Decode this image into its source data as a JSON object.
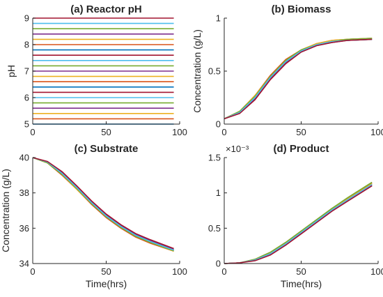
{
  "chart_data": [
    {
      "type": "line",
      "title": "(a)  Reactor pH",
      "xlabel": "",
      "ylabel": "pH",
      "xlim": [
        0,
        100
      ],
      "ylim": [
        5,
        9
      ],
      "xticks": [
        "0",
        "50",
        "100"
      ],
      "yticks": [
        "5",
        "6",
        "7",
        "8",
        "9"
      ],
      "x": [
        0,
        96
      ],
      "series": [
        {
          "color": "#0072BD",
          "values": [
            5.0,
            5.0
          ]
        },
        {
          "color": "#D95319",
          "values": [
            5.2,
            5.2
          ]
        },
        {
          "color": "#EDB120",
          "values": [
            5.4,
            5.4
          ]
        },
        {
          "color": "#7E2F8E",
          "values": [
            5.6,
            5.6
          ]
        },
        {
          "color": "#77AC30",
          "values": [
            5.8,
            5.8
          ]
        },
        {
          "color": "#4DBEEE",
          "values": [
            6.0,
            6.0
          ]
        },
        {
          "color": "#A2142F",
          "values": [
            6.2,
            6.2
          ]
        },
        {
          "color": "#0072BD",
          "values": [
            6.4,
            6.4
          ]
        },
        {
          "color": "#D95319",
          "values": [
            6.6,
            6.6
          ]
        },
        {
          "color": "#EDB120",
          "values": [
            6.8,
            6.8
          ]
        },
        {
          "color": "#7E2F8E",
          "values": [
            7.0,
            7.0
          ]
        },
        {
          "color": "#77AC30",
          "values": [
            7.2,
            7.2
          ]
        },
        {
          "color": "#4DBEEE",
          "values": [
            7.4,
            7.4
          ]
        },
        {
          "color": "#A2142F",
          "values": [
            7.6,
            7.6
          ]
        },
        {
          "color": "#0072BD",
          "values": [
            7.8,
            7.8
          ]
        },
        {
          "color": "#D95319",
          "values": [
            8.0,
            8.0
          ]
        },
        {
          "color": "#EDB120",
          "values": [
            8.2,
            8.2
          ]
        },
        {
          "color": "#7E2F8E",
          "values": [
            8.4,
            8.4
          ]
        },
        {
          "color": "#77AC30",
          "values": [
            8.6,
            8.6
          ]
        },
        {
          "color": "#4DBEEE",
          "values": [
            8.8,
            8.8
          ]
        },
        {
          "color": "#A2142F",
          "values": [
            9.0,
            9.0
          ]
        }
      ]
    },
    {
      "type": "line",
      "title": "(b)  Biomass",
      "xlabel": "",
      "ylabel": "Concentration (g/L)",
      "xlim": [
        0,
        100
      ],
      "ylim": [
        0,
        1
      ],
      "xticks": [
        "0",
        "50",
        "100"
      ],
      "yticks": [
        "0",
        "0.5",
        "1"
      ],
      "x": [
        0,
        10,
        20,
        30,
        40,
        50,
        60,
        70,
        80,
        96
      ],
      "series": [
        {
          "color": "#0072BD",
          "values": [
            0.05,
            0.11,
            0.25,
            0.44,
            0.59,
            0.69,
            0.75,
            0.78,
            0.79,
            0.8
          ]
        },
        {
          "color": "#D95319",
          "values": [
            0.05,
            0.12,
            0.27,
            0.46,
            0.61,
            0.7,
            0.76,
            0.79,
            0.8,
            0.81
          ]
        },
        {
          "color": "#EDB120",
          "values": [
            0.05,
            0.12,
            0.27,
            0.45,
            0.6,
            0.7,
            0.76,
            0.79,
            0.8,
            0.81
          ]
        },
        {
          "color": "#7E2F8E",
          "values": [
            0.05,
            0.11,
            0.24,
            0.43,
            0.58,
            0.68,
            0.74,
            0.77,
            0.79,
            0.8
          ]
        },
        {
          "color": "#77AC30",
          "values": [
            0.05,
            0.12,
            0.26,
            0.45,
            0.6,
            0.7,
            0.75,
            0.78,
            0.8,
            0.81
          ]
        },
        {
          "color": "#4DBEEE",
          "values": [
            0.05,
            0.11,
            0.25,
            0.44,
            0.59,
            0.69,
            0.75,
            0.78,
            0.79,
            0.8
          ]
        },
        {
          "color": "#A2142F",
          "values": [
            0.05,
            0.1,
            0.23,
            0.42,
            0.57,
            0.68,
            0.74,
            0.77,
            0.79,
            0.8
          ]
        }
      ]
    },
    {
      "type": "line",
      "title": "(c)  Substrate",
      "xlabel": "Time(hrs)",
      "ylabel": "Concentration (g/L)",
      "xlim": [
        0,
        100
      ],
      "ylim": [
        34,
        40
      ],
      "xticks": [
        "0",
        "50",
        "100"
      ],
      "yticks": [
        "34",
        "36",
        "38",
        "40"
      ],
      "x": [
        0,
        10,
        20,
        30,
        40,
        50,
        60,
        70,
        80,
        96
      ],
      "series": [
        {
          "color": "#0072BD",
          "values": [
            40.0,
            39.75,
            39.1,
            38.3,
            37.45,
            36.7,
            36.1,
            35.6,
            35.25,
            34.75
          ]
        },
        {
          "color": "#D95319",
          "values": [
            40.0,
            39.7,
            39.0,
            38.2,
            37.35,
            36.6,
            36.0,
            35.5,
            35.15,
            34.7
          ]
        },
        {
          "color": "#EDB120",
          "values": [
            40.0,
            39.7,
            39.05,
            38.2,
            37.4,
            36.65,
            36.05,
            35.55,
            35.2,
            34.7
          ]
        },
        {
          "color": "#7E2F8E",
          "values": [
            40.0,
            39.75,
            39.15,
            38.35,
            37.5,
            36.75,
            36.15,
            35.65,
            35.3,
            34.8
          ]
        },
        {
          "color": "#77AC30",
          "values": [
            40.0,
            39.7,
            39.05,
            38.25,
            37.4,
            36.65,
            36.05,
            35.55,
            35.2,
            34.72
          ]
        },
        {
          "color": "#4DBEEE",
          "values": [
            40.0,
            39.75,
            39.1,
            38.3,
            37.45,
            36.7,
            36.1,
            35.6,
            35.25,
            34.76
          ]
        },
        {
          "color": "#A2142F",
          "values": [
            40.0,
            39.78,
            39.2,
            38.4,
            37.55,
            36.8,
            36.2,
            35.7,
            35.35,
            34.85
          ]
        }
      ]
    },
    {
      "type": "line",
      "title": "(d)  Product",
      "xlabel": "Time(hrs)",
      "ylabel": "",
      "scale_label": "×10⁻³",
      "xlim": [
        0,
        100
      ],
      "ylim": [
        0,
        1.5
      ],
      "xticks": [
        "0",
        "50",
        "100"
      ],
      "yticks": [
        "0",
        "0.5",
        "1",
        "1.5"
      ],
      "x": [
        0,
        10,
        20,
        30,
        40,
        50,
        60,
        70,
        80,
        96
      ],
      "series": [
        {
          "color": "#0072BD",
          "values": [
            0.0,
            0.01,
            0.05,
            0.14,
            0.28,
            0.44,
            0.6,
            0.76,
            0.9,
            1.12
          ]
        },
        {
          "color": "#D95319",
          "values": [
            0.0,
            0.01,
            0.06,
            0.16,
            0.3,
            0.46,
            0.62,
            0.78,
            0.92,
            1.14
          ]
        },
        {
          "color": "#EDB120",
          "values": [
            0.0,
            0.01,
            0.06,
            0.15,
            0.29,
            0.45,
            0.61,
            0.77,
            0.91,
            1.13
          ]
        },
        {
          "color": "#7E2F8E",
          "values": [
            0.0,
            0.01,
            0.05,
            0.13,
            0.27,
            0.43,
            0.59,
            0.75,
            0.89,
            1.11
          ]
        },
        {
          "color": "#77AC30",
          "values": [
            0.0,
            0.01,
            0.06,
            0.16,
            0.3,
            0.46,
            0.62,
            0.78,
            0.93,
            1.15
          ]
        },
        {
          "color": "#4DBEEE",
          "values": [
            0.0,
            0.01,
            0.05,
            0.14,
            0.28,
            0.44,
            0.6,
            0.76,
            0.9,
            1.12
          ]
        },
        {
          "color": "#A2142F",
          "values": [
            0.0,
            0.01,
            0.04,
            0.12,
            0.26,
            0.42,
            0.58,
            0.74,
            0.88,
            1.1
          ]
        }
      ]
    }
  ]
}
